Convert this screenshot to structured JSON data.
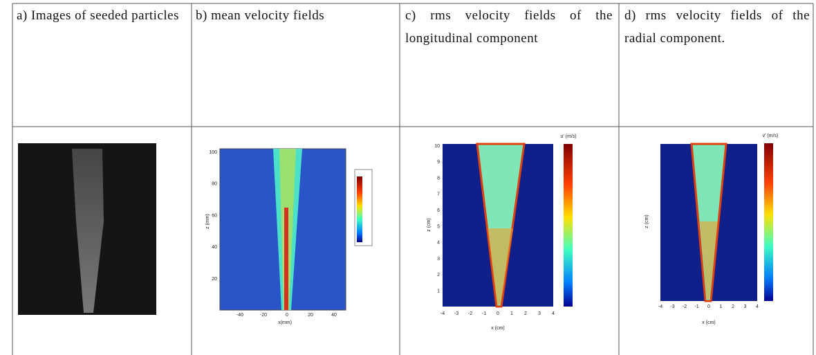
{
  "table": {
    "header": [
      "a) Images of seeded particles",
      "b) mean velocity fields",
      "c) rms velocity fields of the longitudinal component",
      "d) rms velocity fields of the radial component."
    ],
    "figures": {
      "b": {
        "ylabel": "z (mm)",
        "xlabel": "x(mm)",
        "yticks": [
          "100",
          "80",
          "60",
          "40",
          "20"
        ],
        "xticks": [
          "-40",
          "-20",
          "0",
          "20",
          "40"
        ]
      },
      "c": {
        "ylabel": "z (cm)",
        "xlabel": "x (cm)",
        "colorbar_label": "u' (m/s)",
        "yticks": [
          "10",
          "9",
          "8",
          "7",
          "6",
          "5",
          "4",
          "3",
          "2",
          "1"
        ],
        "xticks": [
          "-4",
          "-3",
          "-2",
          "-1",
          "0",
          "1",
          "2",
          "3",
          "4"
        ]
      },
      "d": {
        "ylabel": "z (cm)",
        "xlabel": "x (cm)",
        "colorbar_label": "v' (m/s)",
        "xticks": [
          "-4",
          "-3",
          "-2",
          "-1",
          "0",
          "1",
          "2",
          "3",
          "4"
        ]
      }
    }
  }
}
